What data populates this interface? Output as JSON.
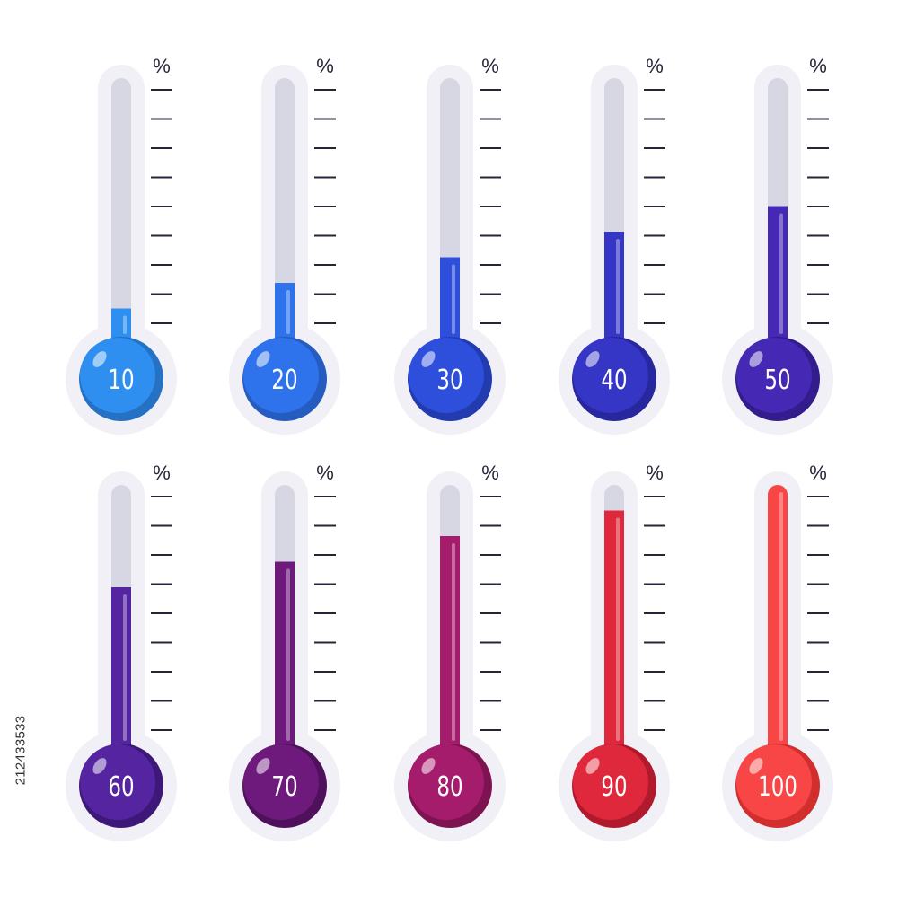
{
  "percent_symbol": "%",
  "stock_id": "212433533",
  "colors": {
    "background": "#ffffff",
    "outline": "#f0f0f6",
    "tube_empty": "#d6d7e3",
    "tube_highlight": "#ffffff",
    "tick": "#2a2438",
    "label_text": "#ffffff"
  },
  "thermometers": [
    {
      "label": "10",
      "percent": 10,
      "color": "#2f8ff0",
      "dark": "#2572c4"
    },
    {
      "label": "20",
      "percent": 20,
      "color": "#2f73ec",
      "dark": "#255cc0"
    },
    {
      "label": "30",
      "percent": 30,
      "color": "#2d4fdc",
      "dark": "#223cb0"
    },
    {
      "label": "40",
      "percent": 40,
      "color": "#3535c6",
      "dark": "#27279e"
    },
    {
      "label": "50",
      "percent": 50,
      "color": "#4528b4",
      "dark": "#331c8c"
    },
    {
      "label": "60",
      "percent": 60,
      "color": "#5524a0",
      "dark": "#3e1878"
    },
    {
      "label": "70",
      "percent": 70,
      "color": "#6e1a7c",
      "dark": "#50115c"
    },
    {
      "label": "80",
      "percent": 80,
      "color": "#a51c6c",
      "dark": "#7e1352"
    },
    {
      "label": "90",
      "percent": 90,
      "color": "#e0283c",
      "dark": "#b01a2c"
    },
    {
      "label": "100",
      "percent": 100,
      "color": "#f84545",
      "dark": "#d22e2e"
    }
  ]
}
